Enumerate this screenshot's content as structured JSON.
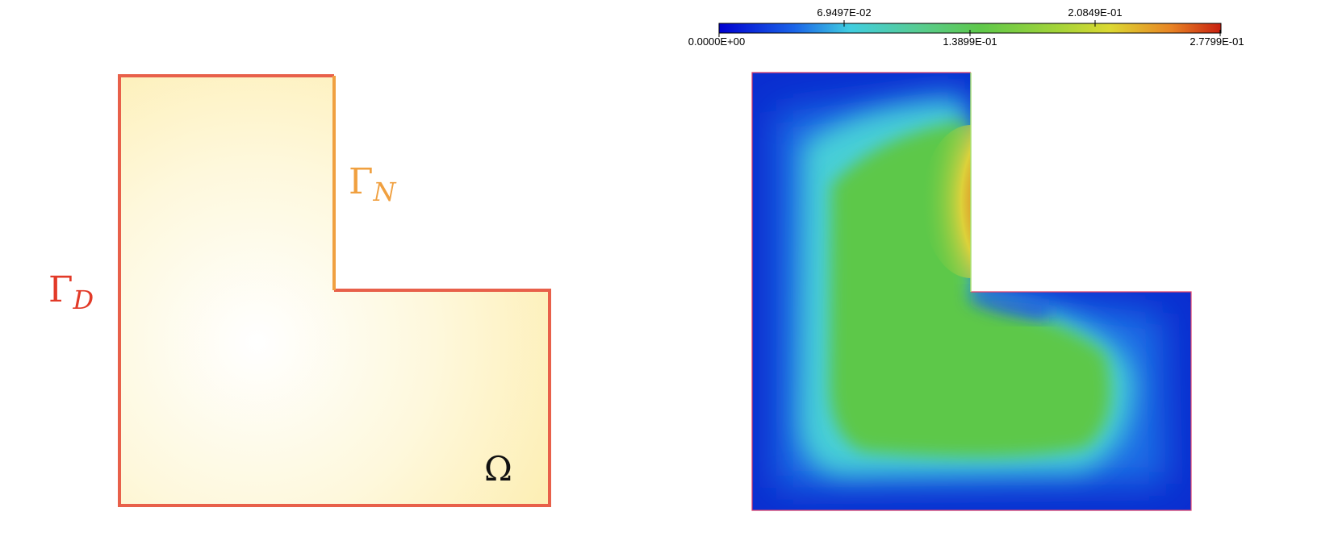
{
  "left_panel": {
    "domain_label": "Ω",
    "dirichlet_label": {
      "base": "Γ",
      "sub": "D"
    },
    "neumann_label": {
      "base": "Γ",
      "sub": "N"
    },
    "colors": {
      "dirichlet": "#e8604a",
      "neumann": "#f0a040",
      "fill_center": "#ffffff",
      "fill_edge": "#fdf0b8",
      "domain_label": "#111111"
    }
  },
  "colorbar": {
    "ticks_top": [
      "6.9497E-02",
      "2.0849E-01"
    ],
    "ticks_bottom": [
      "0.0000E+00",
      "1.3899E-01",
      "2.7799E-01"
    ],
    "min": 0.0,
    "max": 0.27799,
    "colormap": [
      "#0000d0",
      "#1060e0",
      "#40c8d8",
      "#5ec84a",
      "#60c840",
      "#d8d830",
      "#e88020",
      "#c82010"
    ]
  }
}
